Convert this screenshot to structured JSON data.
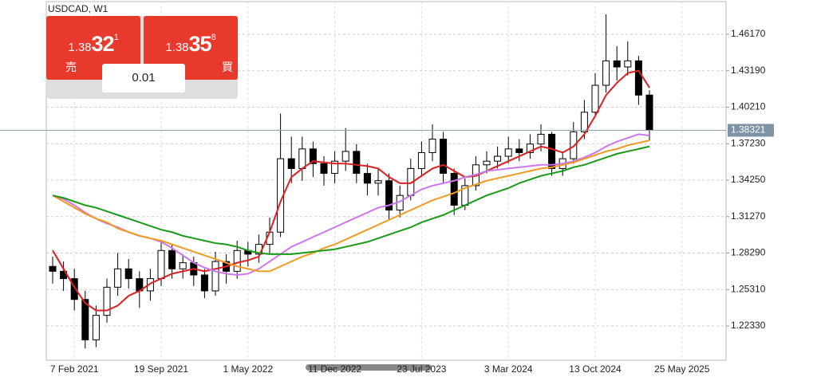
{
  "chart_data": {
    "type": "candlestick",
    "title": "USDCAD, W1",
    "categories": [
      null,
      null,
      "7 Feb 2021",
      null,
      null,
      null,
      null,
      null,
      null,
      null,
      "19 Sep 2021",
      null,
      null,
      null,
      null,
      null,
      null,
      null,
      "1 May 2022",
      null,
      null,
      null,
      null,
      null,
      null,
      null,
      "11 Dec 2022",
      null,
      null,
      null,
      null,
      null,
      null,
      null,
      "23 Jul 2023",
      null,
      null,
      null,
      null,
      null,
      null,
      null,
      "3 Mar 2024",
      null,
      null,
      null,
      null,
      null,
      null,
      null,
      "13 Oct 2024",
      null,
      null,
      null,
      null,
      null,
      null,
      null,
      "25 May 2025"
    ],
    "open": [
      1.272,
      1.268,
      1.262,
      1.245,
      1.212,
      1.232,
      1.255,
      1.27,
      1.262,
      1.252,
      1.262,
      1.285,
      1.27,
      1.275,
      1.265,
      1.252,
      1.276,
      1.268,
      1.285,
      1.282,
      1.29,
      1.3,
      1.36,
      1.352,
      1.368,
      1.356,
      1.348,
      1.358,
      1.366,
      1.348,
      1.34,
      1.342,
      1.318,
      1.33,
      1.352,
      1.365,
      1.376,
      1.348,
      1.322,
      1.338,
      1.355,
      1.358,
      1.362,
      1.368,
      1.365,
      1.372,
      1.38,
      1.352,
      1.36,
      1.382,
      1.398,
      1.42,
      1.44,
      1.435,
      1.44,
      1.412,
      null,
      null,
      null
    ],
    "high": [
      1.28,
      1.276,
      1.27,
      1.252,
      1.24,
      1.262,
      1.283,
      1.278,
      1.268,
      1.27,
      1.292,
      1.29,
      1.282,
      1.28,
      1.27,
      1.284,
      1.282,
      1.293,
      1.292,
      1.298,
      1.312,
      1.397,
      1.378,
      1.378,
      1.374,
      1.362,
      1.366,
      1.385,
      1.372,
      1.356,
      1.352,
      1.348,
      1.338,
      1.36,
      1.374,
      1.388,
      1.382,
      1.352,
      1.344,
      1.362,
      1.366,
      1.37,
      1.378,
      1.376,
      1.38,
      1.388,
      1.382,
      1.366,
      1.39,
      1.408,
      1.43,
      1.478,
      1.452,
      1.456,
      1.444,
      1.416,
      null,
      null,
      null
    ],
    "low": [
      1.258,
      1.252,
      1.236,
      1.205,
      1.206,
      1.226,
      1.248,
      1.254,
      1.238,
      1.244,
      1.256,
      1.262,
      1.262,
      1.256,
      1.246,
      1.248,
      1.258,
      1.262,
      1.272,
      1.275,
      1.282,
      1.296,
      1.34,
      1.342,
      1.345,
      1.338,
      1.34,
      1.35,
      1.34,
      1.33,
      1.33,
      1.31,
      1.312,
      1.326,
      1.346,
      1.358,
      1.34,
      1.314,
      1.318,
      1.334,
      1.348,
      1.352,
      1.356,
      1.358,
      1.36,
      1.366,
      1.346,
      1.346,
      1.356,
      1.376,
      1.394,
      1.414,
      1.424,
      1.428,
      1.404,
      1.375,
      null,
      null,
      null
    ],
    "close": [
      1.268,
      1.262,
      1.245,
      1.212,
      1.232,
      1.255,
      1.27,
      1.262,
      1.252,
      1.262,
      1.285,
      1.27,
      1.275,
      1.265,
      1.252,
      1.276,
      1.268,
      1.285,
      1.282,
      1.29,
      1.3,
      1.36,
      1.352,
      1.368,
      1.356,
      1.348,
      1.358,
      1.366,
      1.348,
      1.34,
      1.342,
      1.318,
      1.33,
      1.352,
      1.365,
      1.376,
      1.348,
      1.322,
      1.338,
      1.355,
      1.358,
      1.362,
      1.368,
      1.365,
      1.372,
      1.38,
      1.352,
      1.36,
      1.382,
      1.398,
      1.42,
      1.44,
      1.435,
      1.44,
      1.412,
      1.38321,
      null,
      null,
      null
    ],
    "up_color": "#ffffff",
    "down_color": "#000000",
    "series": [
      {
        "color": "#dd2020",
        "values": [
          1.285,
          1.27,
          1.255,
          1.242,
          1.236,
          1.236,
          1.24,
          1.248,
          1.252,
          1.258,
          1.262,
          1.266,
          1.268,
          1.27,
          1.268,
          1.27,
          1.272,
          1.275,
          1.277,
          1.28,
          1.3,
          1.325,
          1.345,
          1.352,
          1.358,
          1.357,
          1.356,
          1.356,
          1.355,
          1.354,
          1.352,
          1.345,
          1.34,
          1.34,
          1.346,
          1.352,
          1.355,
          1.35,
          1.345,
          1.346,
          1.35,
          1.354,
          1.358,
          1.362,
          1.366,
          1.37,
          1.368,
          1.365,
          1.37,
          1.38,
          1.395,
          1.412,
          1.422,
          1.43,
          1.432,
          1.418,
          null,
          null,
          null
        ]
      },
      {
        "color": "#cc77ee",
        "values": [
          1.33,
          1.327,
          1.322,
          1.316,
          1.311,
          1.307,
          1.304,
          1.3,
          1.297,
          1.295,
          1.292,
          1.287,
          1.281,
          1.275,
          1.271,
          1.268,
          1.266,
          1.265,
          1.266,
          1.27,
          1.276,
          1.282,
          1.288,
          1.292,
          1.296,
          1.3,
          1.304,
          1.308,
          1.312,
          1.316,
          1.32,
          1.322,
          1.325,
          1.33,
          1.335,
          1.338,
          1.34,
          1.342,
          1.345,
          1.347,
          1.35,
          1.351,
          1.352,
          1.353,
          1.354,
          1.355,
          1.355,
          1.356,
          1.358,
          1.361,
          1.365,
          1.37,
          1.374,
          1.377,
          1.38,
          1.379,
          null,
          null,
          null
        ]
      },
      {
        "color": "#f09a20",
        "values": [
          1.33,
          1.325,
          1.32,
          1.315,
          1.311,
          1.308,
          1.303,
          1.3,
          1.297,
          1.295,
          1.293,
          1.29,
          1.287,
          1.284,
          1.281,
          1.278,
          1.275,
          1.272,
          1.27,
          1.268,
          1.268,
          1.272,
          1.276,
          1.28,
          1.283,
          1.287,
          1.29,
          1.294,
          1.298,
          1.302,
          1.306,
          1.31,
          1.314,
          1.318,
          1.322,
          1.326,
          1.329,
          1.332,
          1.336,
          1.339,
          1.342,
          1.344,
          1.346,
          1.348,
          1.35,
          1.352,
          1.353,
          1.355,
          1.357,
          1.36,
          1.363,
          1.366,
          1.368,
          1.371,
          1.373,
          1.375,
          null,
          null,
          null
        ]
      },
      {
        "color": "#1a9a1a",
        "values": [
          1.33,
          1.328,
          1.325,
          1.322,
          1.32,
          1.317,
          1.314,
          1.311,
          1.308,
          1.305,
          1.302,
          1.3,
          1.297,
          1.295,
          1.293,
          1.291,
          1.29,
          1.288,
          1.285,
          1.283,
          1.282,
          1.282,
          1.282,
          1.283,
          1.284,
          1.285,
          1.286,
          1.288,
          1.29,
          1.292,
          1.295,
          1.298,
          1.301,
          1.304,
          1.308,
          1.311,
          1.314,
          1.318,
          1.322,
          1.326,
          1.33,
          1.333,
          1.336,
          1.34,
          1.343,
          1.346,
          1.348,
          1.35,
          1.353,
          1.355,
          1.358,
          1.361,
          1.364,
          1.366,
          1.368,
          1.37,
          null,
          null,
          null
        ]
      }
    ],
    "ylim": [
      1.1953,
      1.4897
    ],
    "yticks": [
      {
        "value": 1.2233,
        "label": "1.22330"
      },
      {
        "value": 1.2531,
        "label": "1.25310"
      },
      {
        "value": 1.2829,
        "label": "1.28290"
      },
      {
        "value": 1.3127,
        "label": "1.31270"
      },
      {
        "value": 1.3425,
        "label": "1.34250"
      },
      {
        "value": 1.3723,
        "label": "1.37230"
      },
      {
        "value": 1.4021,
        "label": "1.40210"
      },
      {
        "value": 1.4319,
        "label": "1.43190"
      },
      {
        "value": 1.4617,
        "label": "1.46170"
      }
    ],
    "current_price": 1.38321,
    "grid": true
  },
  "trade_panel": {
    "sell": {
      "price_head": "1.38",
      "price_big": "32",
      "price_sup": "1",
      "label": "売"
    },
    "buy": {
      "price_head": "1.38",
      "price_big": "35",
      "price_sup": "8",
      "label": "買"
    },
    "volume": "0.01"
  }
}
